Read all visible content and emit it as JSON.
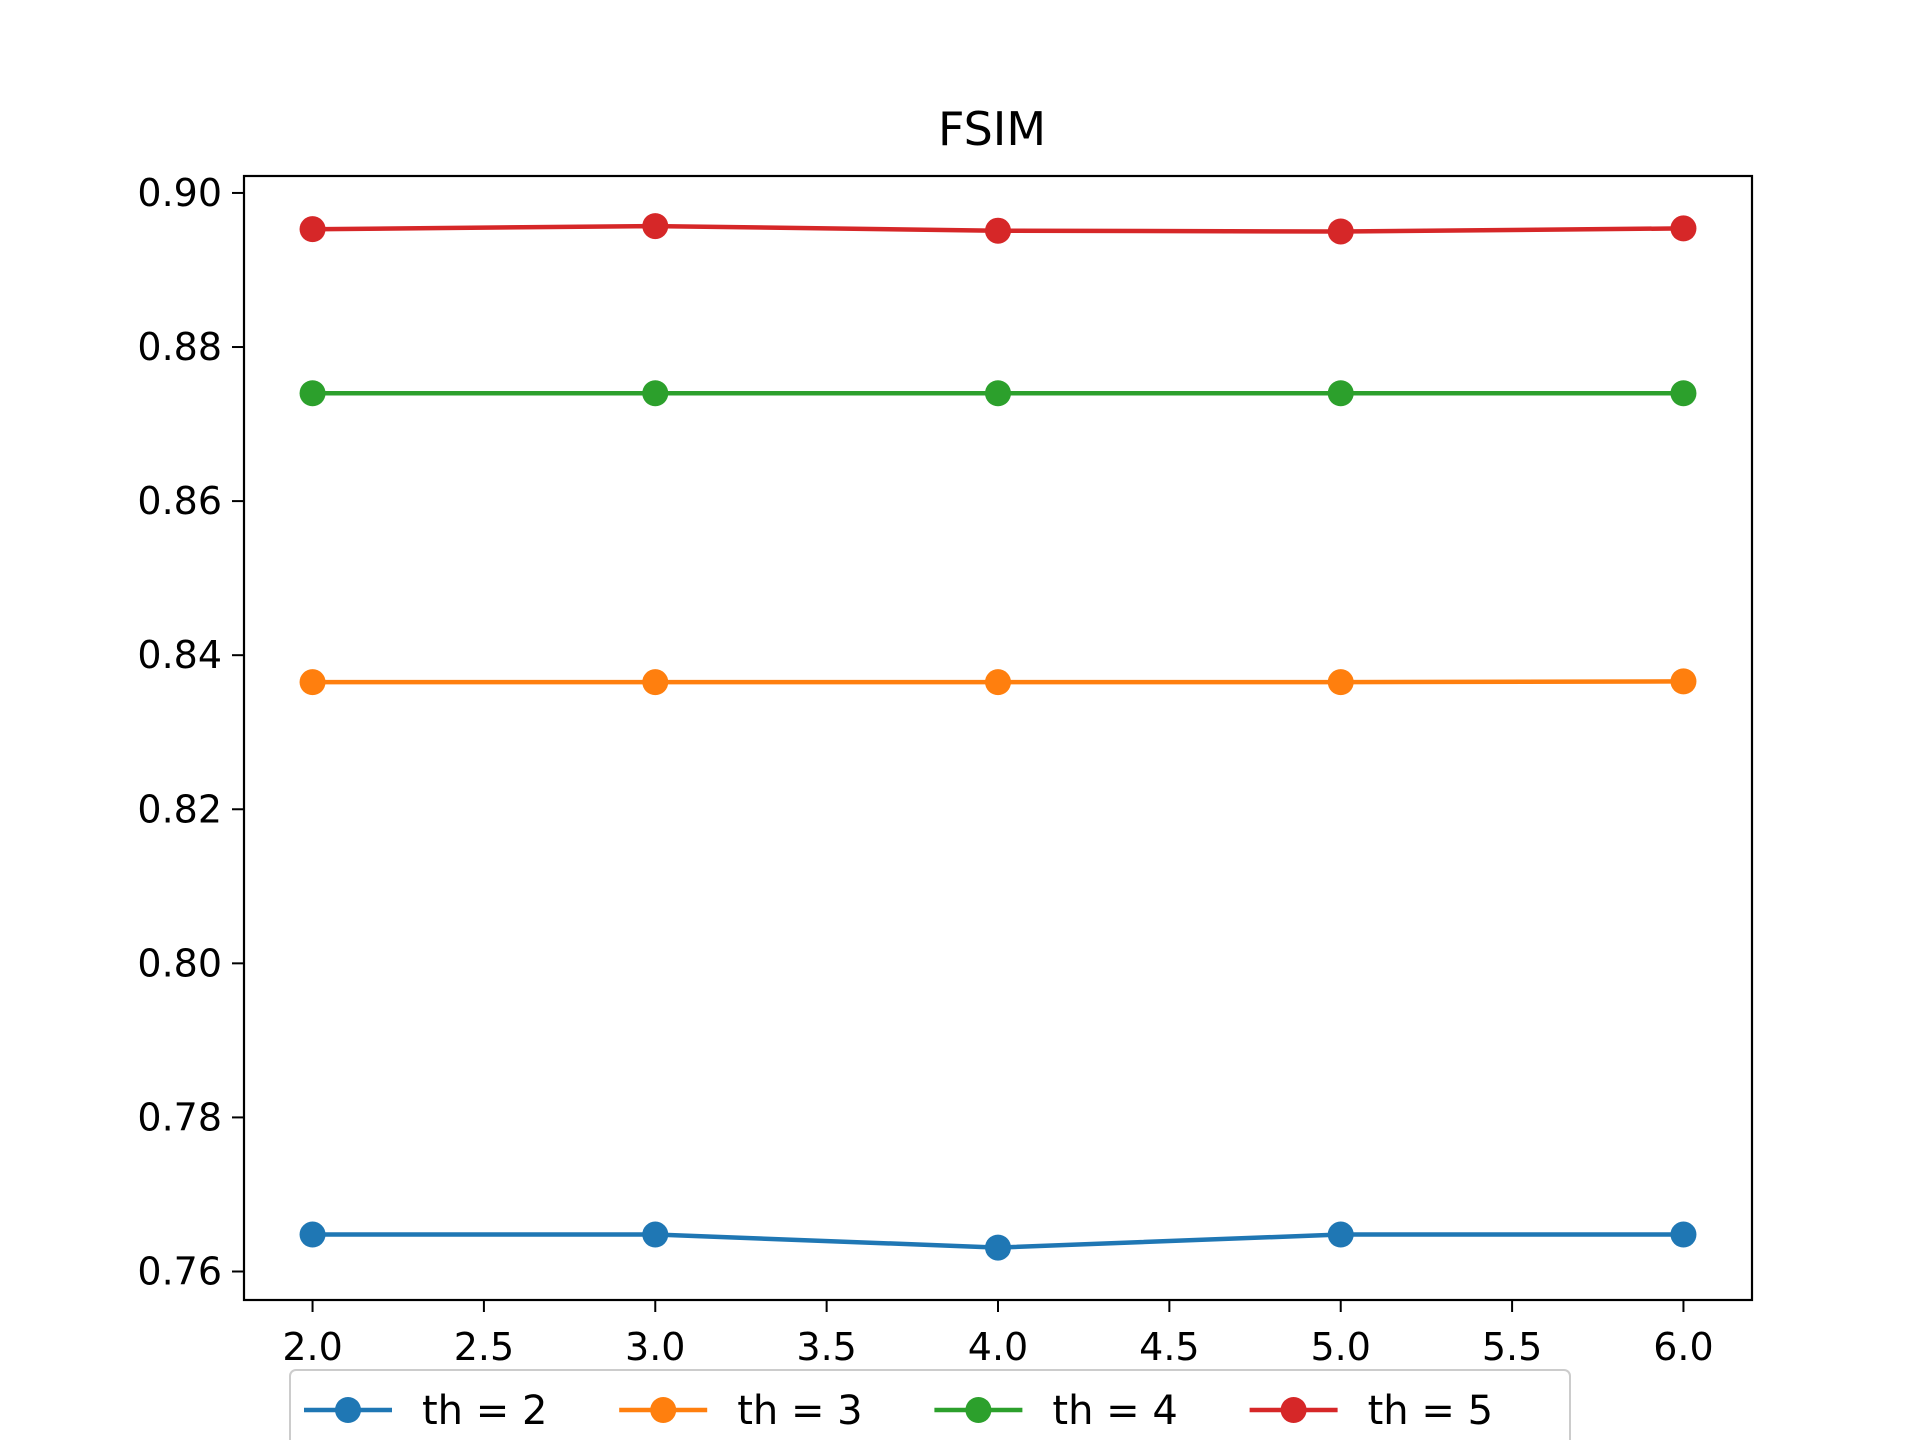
{
  "chart_data": {
    "type": "line",
    "title": "FSIM",
    "xlabel": "",
    "ylabel": "",
    "xlim": [
      1.8,
      6.2
    ],
    "ylim": [
      0.7563,
      0.9022
    ],
    "xticks": [
      2.0,
      2.5,
      3.0,
      3.5,
      4.0,
      4.5,
      5.0,
      5.5,
      6.0
    ],
    "xtick_labels": [
      "2.0",
      "2.5",
      "3.0",
      "3.5",
      "4.0",
      "4.5",
      "5.0",
      "5.5",
      "6.0"
    ],
    "yticks": [
      0.76,
      0.78,
      0.8,
      0.82,
      0.84,
      0.86,
      0.88,
      0.9
    ],
    "ytick_labels": [
      "0.76",
      "0.78",
      "0.80",
      "0.82",
      "0.84",
      "0.86",
      "0.88",
      "0.90"
    ],
    "grid": false,
    "legend_position": "bottom-center, below axes",
    "x": [
      2.0,
      3.0,
      4.0,
      5.0,
      6.0
    ],
    "series": [
      {
        "name": "th = 2",
        "color": "#1f77b4",
        "values": [
          0.7648,
          0.7648,
          0.7631,
          0.7648,
          0.7648
        ]
      },
      {
        "name": "th = 3",
        "color": "#ff7f0e",
        "values": [
          0.8365,
          0.8365,
          0.8365,
          0.8365,
          0.8366
        ]
      },
      {
        "name": "th = 4",
        "color": "#2ca02c",
        "values": [
          0.874,
          0.874,
          0.874,
          0.874,
          0.874
        ]
      },
      {
        "name": "th = 5",
        "color": "#d62728",
        "values": [
          0.8953,
          0.8957,
          0.8951,
          0.895,
          0.8954
        ]
      }
    ]
  }
}
